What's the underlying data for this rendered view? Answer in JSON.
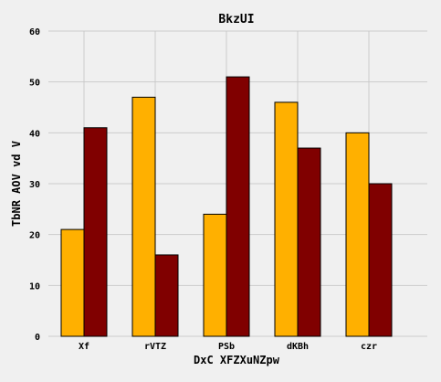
{
  "chart_data": {
    "type": "bar",
    "title": "BkzUI",
    "xlabel": "DxC XFZXuNZpw",
    "ylabel": "TbNR AOV vd V",
    "categories": [
      "Xf",
      "rVTZ",
      "PSb",
      "dKBh",
      "czr"
    ],
    "series": [
      {
        "values": [
          21,
          47,
          24,
          46,
          40
        ],
        "color": "#ffb000"
      },
      {
        "values": [
          41,
          16,
          51,
          37,
          30
        ],
        "color": "#800000"
      }
    ],
    "ylim": [
      0,
      60
    ],
    "yticks": [
      0,
      10,
      20,
      30,
      40,
      50,
      60
    ],
    "grid": true,
    "background": "#f0f0f0",
    "grid_color": "#cbcbcb"
  }
}
